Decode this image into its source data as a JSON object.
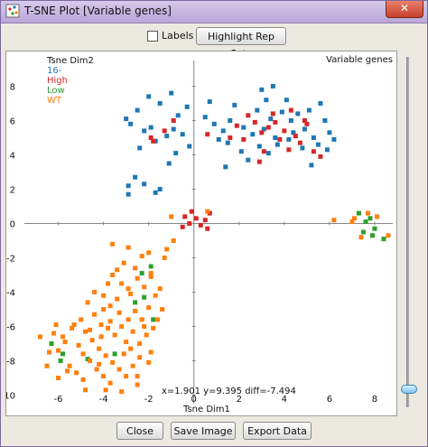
{
  "window": {
    "title": "T-SNE Plot [Variable genes]",
    "close_glyph": "✕"
  },
  "toolbar": {
    "labels_checkbox": "Labels",
    "highlight_button": "Highlight Rep Sets"
  },
  "plot": {
    "coord_readout": "x=1.901 y=9.395 diff=-7.494",
    "corner_label": "Variable genes"
  },
  "bottom": {
    "close_button": "Close",
    "save_button": "Save Image",
    "export_button": "Export Data"
  },
  "colors": {
    "16-": "#1f77b4",
    "High": "#d62728",
    "Low": "#2ca02c",
    "WT": "#ff7f0e"
  },
  "chart_data": {
    "type": "scatter",
    "title": "Variable genes",
    "xlabel": "Tsne Dim1",
    "ylabel": "Tsne Dim2",
    "xlim": [
      -7.5,
      8.8
    ],
    "ylim": [
      -10.5,
      9.5
    ],
    "xticks": [
      -6,
      -4,
      -2,
      0,
      2,
      4,
      6,
      8
    ],
    "yticks": [
      8,
      6,
      4,
      2,
      0,
      -2,
      -4,
      -6,
      -8,
      -10
    ],
    "legend_position": "top-left",
    "series": [
      {
        "name": "16-",
        "color": "#1f77b4",
        "points": [
          [
            -3.0,
            6.1
          ],
          [
            -2.5,
            6.6
          ],
          [
            -2.0,
            7.4
          ],
          [
            -1.5,
            7.0
          ],
          [
            -1.0,
            7.6
          ],
          [
            -0.7,
            6.3
          ],
          [
            -0.3,
            6.8
          ],
          [
            -2.8,
            5.8
          ],
          [
            -2.2,
            5.4
          ],
          [
            -1.9,
            5.6
          ],
          [
            -1.2,
            5.1
          ],
          [
            -0.9,
            5.5
          ],
          [
            -0.5,
            5.2
          ],
          [
            -0.2,
            4.5
          ],
          [
            -1.7,
            4.8
          ],
          [
            -2.4,
            4.4
          ],
          [
            -0.8,
            4.1
          ],
          [
            -1.1,
            3.5
          ],
          [
            -2.6,
            2.7
          ],
          [
            -2.9,
            2.2
          ],
          [
            -2.2,
            2.3
          ],
          [
            -1.5,
            2.0
          ],
          [
            -1.7,
            1.8
          ],
          [
            -2.9,
            1.7
          ],
          [
            0.5,
            6.2
          ],
          [
            0.9,
            5.8
          ],
          [
            1.3,
            5.4
          ],
          [
            1.6,
            6.0
          ],
          [
            2.2,
            5.6
          ],
          [
            2.8,
            6.6
          ],
          [
            3.0,
            7.8
          ],
          [
            3.2,
            7.2
          ],
          [
            2.6,
            5.2
          ],
          [
            3.4,
            6.1
          ],
          [
            3.6,
            5.0
          ],
          [
            3.9,
            6.5
          ],
          [
            4.1,
            7.2
          ],
          [
            4.3,
            6.0
          ],
          [
            4.6,
            6.4
          ],
          [
            4.9,
            5.5
          ],
          [
            5.1,
            6.6
          ],
          [
            5.3,
            5.0
          ],
          [
            5.5,
            4.6
          ],
          [
            5.8,
            6.0
          ],
          [
            6.0,
            5.3
          ],
          [
            6.2,
            4.9
          ],
          [
            5.6,
            7.0
          ],
          [
            4.8,
            4.4
          ],
          [
            4.2,
            4.9
          ],
          [
            3.7,
            4.6
          ],
          [
            3.3,
            4.1
          ],
          [
            2.9,
            4.5
          ],
          [
            2.4,
            3.7
          ],
          [
            5.2,
            3.4
          ],
          [
            1.5,
            4.7
          ],
          [
            2.1,
            4.2
          ],
          [
            1.1,
            4.9
          ],
          [
            3.1,
            5.5
          ],
          [
            4.4,
            5.3
          ],
          [
            5.9,
            4.3
          ],
          [
            0.7,
            7.1
          ],
          [
            1.8,
            6.9
          ],
          [
            3.5,
            8.0
          ],
          [
            1.4,
            3.3
          ]
        ]
      },
      {
        "name": "High",
        "color": "#d62728",
        "points": [
          [
            -1.8,
            4.8
          ],
          [
            -1.3,
            5.4
          ],
          [
            -0.9,
            6.0
          ],
          [
            -1.9,
            5.0
          ],
          [
            0.6,
            5.2
          ],
          [
            1.9,
            5.7
          ],
          [
            2.4,
            6.3
          ],
          [
            2.7,
            5.9
          ],
          [
            3.0,
            5.3
          ],
          [
            3.3,
            5.6
          ],
          [
            3.6,
            5.9
          ],
          [
            3.8,
            4.9
          ],
          [
            4.0,
            5.4
          ],
          [
            4.2,
            4.3
          ],
          [
            4.5,
            5.1
          ],
          [
            4.7,
            4.7
          ],
          [
            5.0,
            5.8
          ],
          [
            5.3,
            4.2
          ],
          [
            5.6,
            3.9
          ],
          [
            3.1,
            4.2
          ],
          [
            2.9,
            3.6
          ],
          [
            2.2,
            4.9
          ],
          [
            1.6,
            5.0
          ],
          [
            4.9,
            6.0
          ],
          [
            3.5,
            6.4
          ],
          [
            4.3,
            6.6
          ],
          [
            -0.4,
            0.4
          ],
          [
            -0.2,
            0.0
          ],
          [
            0.1,
            0.3
          ],
          [
            0.3,
            -0.1
          ],
          [
            -0.5,
            -0.2
          ],
          [
            0.5,
            0.2
          ],
          [
            0.7,
            0.6
          ],
          [
            0.6,
            -0.3
          ],
          [
            -0.1,
            0.7
          ]
        ]
      },
      {
        "name": "Low",
        "color": "#2ca02c",
        "points": [
          [
            7.3,
            0.6
          ],
          [
            7.5,
            -0.5
          ],
          [
            7.8,
            0.3
          ],
          [
            8.0,
            -0.3
          ],
          [
            7.6,
            0.1
          ],
          [
            8.4,
            -0.9
          ],
          [
            7.9,
            -0.7
          ],
          [
            -1.9,
            -2.5
          ],
          [
            -2.3,
            -2.9
          ],
          [
            -1.8,
            -5.6
          ],
          [
            -2.2,
            -4.3
          ],
          [
            -6.3,
            -7.0
          ],
          [
            -5.8,
            -7.6
          ],
          [
            -5.9,
            -8.0
          ],
          [
            -2.6,
            -4.6
          ],
          [
            -3.5,
            -7.6
          ],
          [
            -4.7,
            -7.9
          ]
        ]
      },
      {
        "name": "WT",
        "color": "#ff7f0e",
        "points": [
          [
            -2.9,
            -1.4
          ],
          [
            -2.3,
            -1.9
          ],
          [
            -1.9,
            -2.9
          ],
          [
            -3.6,
            -1.2
          ],
          [
            -3.1,
            -2.3
          ],
          [
            -2.0,
            -1.7
          ],
          [
            -0.9,
            -1.0
          ],
          [
            -1.2,
            -1.5
          ],
          [
            -3.6,
            -3.0
          ],
          [
            -3.2,
            -3.5
          ],
          [
            -2.8,
            -4.1
          ],
          [
            -2.5,
            -3.2
          ],
          [
            -2.2,
            -3.7
          ],
          [
            -1.9,
            -3.1
          ],
          [
            -4.0,
            -4.2
          ],
          [
            -3.7,
            -4.8
          ],
          [
            -3.3,
            -5.2
          ],
          [
            -2.9,
            -5.6
          ],
          [
            -2.6,
            -5.1
          ],
          [
            -2.3,
            -5.6
          ],
          [
            -2.0,
            -4.9
          ],
          [
            -1.7,
            -4.2
          ],
          [
            -4.4,
            -5.3
          ],
          [
            -4.1,
            -5.9
          ],
          [
            -3.8,
            -6.1
          ],
          [
            -3.5,
            -6.5
          ],
          [
            -3.0,
            -6.9
          ],
          [
            -2.7,
            -6.3
          ],
          [
            -2.4,
            -7.0
          ],
          [
            -2.1,
            -6.5
          ],
          [
            -1.8,
            -6.1
          ],
          [
            -4.8,
            -6.3
          ],
          [
            -4.5,
            -6.8
          ],
          [
            -4.2,
            -7.3
          ],
          [
            -3.9,
            -7.7
          ],
          [
            -3.6,
            -8.1
          ],
          [
            -3.3,
            -8.5
          ],
          [
            -3.0,
            -8.9
          ],
          [
            -2.7,
            -8.3
          ],
          [
            -2.4,
            -7.8
          ],
          [
            -5.1,
            -7.1
          ],
          [
            -4.9,
            -7.6
          ],
          [
            -4.6,
            -8.0
          ],
          [
            -4.3,
            -8.5
          ],
          [
            -4.0,
            -8.9
          ],
          [
            -3.7,
            -9.3
          ],
          [
            -5.5,
            -8.3
          ],
          [
            -5.2,
            -8.7
          ],
          [
            -4.9,
            -9.1
          ],
          [
            -6.5,
            -8.3
          ],
          [
            -6.8,
            -6.6
          ],
          [
            -6.2,
            -6.4
          ],
          [
            -5.7,
            -6.9
          ],
          [
            -5.4,
            -6.1
          ],
          [
            -5.0,
            -5.6
          ],
          [
            -4.7,
            -4.6
          ],
          [
            -4.4,
            -4.0
          ],
          [
            -3.8,
            -3.5
          ],
          [
            -3.4,
            -2.7
          ],
          [
            -2.6,
            -2.6
          ],
          [
            -2.2,
            -6.0
          ],
          [
            -1.6,
            -5.6
          ],
          [
            -1.9,
            -7.5
          ],
          [
            -2.5,
            -8.9
          ],
          [
            -3.2,
            -9.8
          ],
          [
            -3.9,
            -9.7
          ],
          [
            -6.0,
            -9.0
          ],
          [
            -5.6,
            -8.6
          ],
          [
            -4.1,
            -6.6
          ],
          [
            -3.1,
            -7.6
          ],
          [
            -2.8,
            -7.3
          ],
          [
            -1.4,
            -5.0
          ],
          [
            -1.5,
            -3.8
          ],
          [
            -2.9,
            -3.8
          ],
          [
            -3.4,
            -4.4
          ],
          [
            -4.0,
            -5.0
          ],
          [
            -5.3,
            -5.9
          ],
          [
            -6.0,
            -7.4
          ],
          [
            -1.0,
            0.4
          ],
          [
            7.1,
            0.3
          ],
          [
            7.4,
            -0.8
          ],
          [
            7.0,
            0.1
          ],
          [
            8.1,
            0.4
          ],
          [
            8.6,
            -0.7
          ],
          [
            7.7,
            0.6
          ],
          [
            6.2,
            0.2
          ],
          [
            -1.3,
            -2.0
          ],
          [
            0.6,
            0.7
          ],
          [
            -3.7,
            -5.7
          ],
          [
            -4.6,
            -6.2
          ],
          [
            -2.0,
            -8.1
          ],
          [
            -4.2,
            -8.2
          ],
          [
            -5.8,
            -6.6
          ],
          [
            -6.4,
            -7.5
          ],
          [
            -6.1,
            -5.9
          ],
          [
            -4.8,
            -9.7
          ],
          [
            -3.2,
            -6.0
          ],
          [
            -2.5,
            -9.4
          ]
        ]
      }
    ]
  }
}
